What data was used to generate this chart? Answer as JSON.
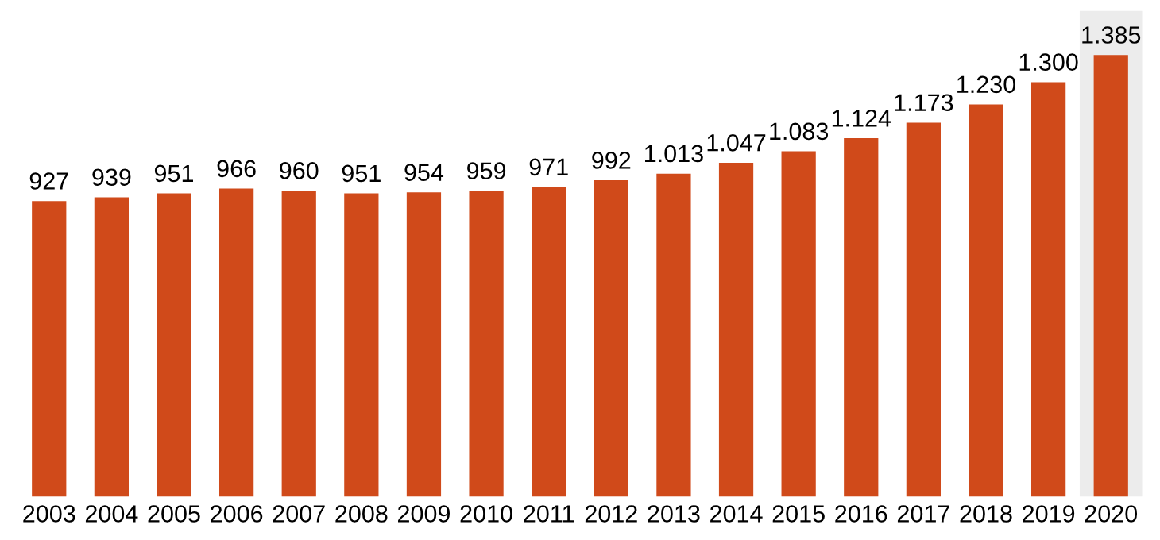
{
  "chart_data": {
    "type": "bar",
    "categories": [
      "2003",
      "2004",
      "2005",
      "2006",
      "2007",
      "2008",
      "2009",
      "2010",
      "2011",
      "2012",
      "2013",
      "2014",
      "2015",
      "2016",
      "2017",
      "2018",
      "2019",
      "2020"
    ],
    "values": [
      927,
      939,
      951,
      966,
      960,
      951,
      954,
      959,
      971,
      992,
      1013,
      1047,
      1083,
      1124,
      1173,
      1230,
      1300,
      1385
    ],
    "value_labels": [
      "927",
      "939",
      "951",
      "966",
      "960",
      "951",
      "954",
      "959",
      "971",
      "992",
      "1.013",
      "1.047",
      "1.083",
      "1.124",
      "1.173",
      "1.230",
      "1.300",
      "1.385"
    ],
    "color": "#d04a1a",
    "bands": [
      {
        "axis": "x",
        "from": "2020",
        "to": "2020",
        "color": "#ececec"
      }
    ],
    "grid": false,
    "legend": false
  }
}
